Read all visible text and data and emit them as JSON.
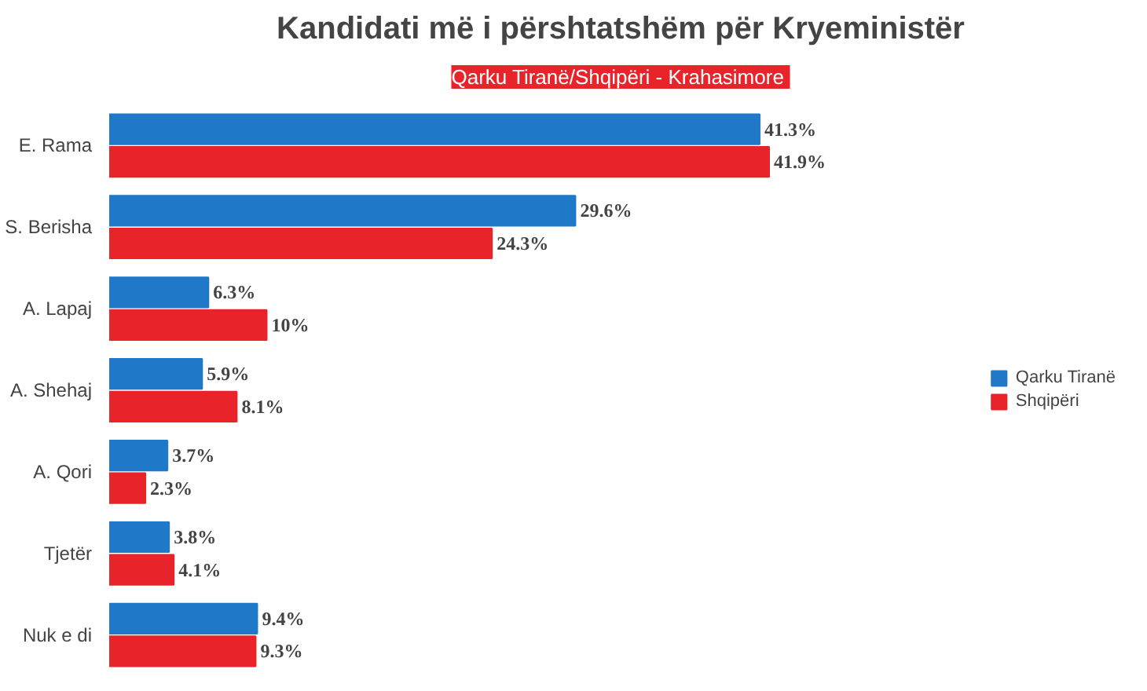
{
  "chart_data": {
    "type": "bar",
    "orientation": "horizontal",
    "title": "Kandidati më i përshtatshëm për Kryeministër",
    "subtitle": "Qarku Tiranë/Shqipëri -  Krahasimore",
    "categories": [
      "E. Rama",
      "S. Berisha",
      "A. Lapaj",
      "A. Shehaj",
      "A. Qori",
      "Tjetër",
      "Nuk e di"
    ],
    "series": [
      {
        "name": "Qarku Tiranë",
        "color": "#1f78c8",
        "values": [
          41.3,
          29.6,
          6.3,
          5.9,
          3.7,
          3.8,
          9.4
        ],
        "value_labels": [
          "41.3%",
          "29.6%",
          "6.3%",
          "5.9%",
          "3.7%",
          "3.8%",
          "9.4%"
        ]
      },
      {
        "name": "Shqipëri",
        "color": "#e8232a",
        "values": [
          41.9,
          24.3,
          10,
          8.1,
          2.3,
          4.1,
          9.3
        ],
        "value_labels": [
          "41.9%",
          "24.3%",
          "10%",
          "8.1%",
          "2.3%",
          "4.1%",
          "9.3%"
        ]
      }
    ],
    "legend": "right",
    "grid": false
  }
}
